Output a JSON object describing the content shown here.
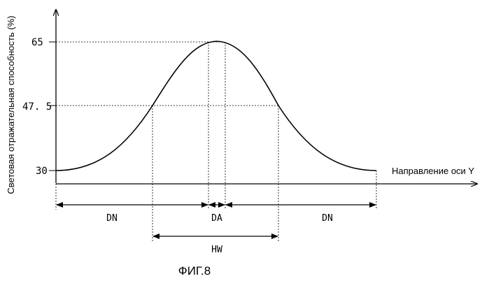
{
  "figure": {
    "caption": "ФИГ.8",
    "y_axis_label": "Световая отражательная способность (%)",
    "x_axis_label": "Направление оси Y",
    "y_ticks": [
      "65",
      "47. 5",
      "30"
    ],
    "dimensions": {
      "dn_left": "DN",
      "da": "DA",
      "dn_right": "DN",
      "hw": "HW"
    }
  },
  "colors": {
    "ink": "#000000",
    "background": "#ffffff"
  }
}
